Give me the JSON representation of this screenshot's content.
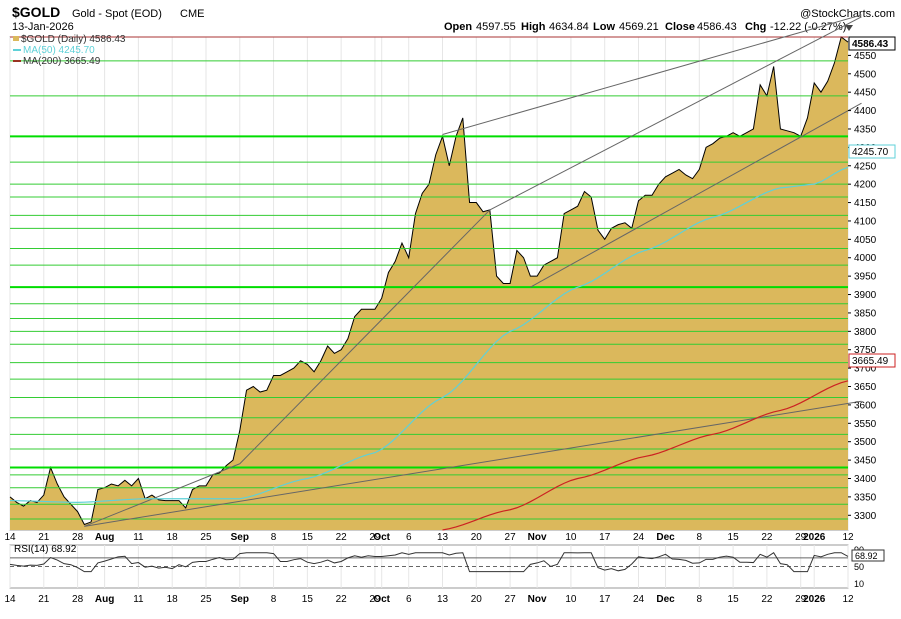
{
  "header": {
    "symbol": "$GOLD",
    "name": "Gold - Spot (EOD)",
    "exchange": "CME",
    "date": "13-Jan-2026",
    "watermark": "@StockCharts.com",
    "open_label": "Open",
    "open": "4597.55",
    "high_label": "High",
    "high": "4634.84",
    "low_label": "Low",
    "low": "4569.21",
    "close_label": "Close",
    "close": "4586.43",
    "chg_label": "Chg",
    "chg": "-12.22 (-0.27%)",
    "dropdown_icon": "triangle-down-icon"
  },
  "legend": {
    "price": "$GOLD (Daily) 4586.43",
    "ma50": "MA(50) 4245.70",
    "ma200": "MA(200) 3665.49"
  },
  "colors": {
    "price_fill": "#dbb85c",
    "price_line": "#000000",
    "ma50": "#5fd1d8",
    "ma200": "#cc2222",
    "hline": "#33cc33",
    "hline_bold": "#00dd00",
    "trend": "#666666",
    "resistance": "#aa3333",
    "grid": "#e6e6e6",
    "rsi_fill": "#555555"
  },
  "chart_data": {
    "type": "area",
    "title": "$GOLD Gold - Spot (EOD) CME",
    "ylim": [
      3260,
      4600
    ],
    "yticks": [
      3300,
      3350,
      3400,
      3450,
      3500,
      3550,
      3600,
      3650,
      3700,
      3750,
      3800,
      3850,
      3900,
      3950,
      4000,
      4050,
      4100,
      4150,
      4200,
      4250,
      4300,
      4350,
      4400,
      4450,
      4500,
      4550
    ],
    "x_labels": [
      {
        "i": 0,
        "label": "14"
      },
      {
        "i": 5,
        "label": "21"
      },
      {
        "i": 10,
        "label": "28"
      },
      {
        "i": 14,
        "label": "Aug"
      },
      {
        "i": 19,
        "label": "11"
      },
      {
        "i": 24,
        "label": "18"
      },
      {
        "i": 29,
        "label": "25"
      },
      {
        "i": 34,
        "label": "Sep"
      },
      {
        "i": 39,
        "label": "8"
      },
      {
        "i": 44,
        "label": "15"
      },
      {
        "i": 49,
        "label": "22"
      },
      {
        "i": 54,
        "label": "29"
      },
      {
        "i": 55,
        "label": "Oct"
      },
      {
        "i": 59,
        "label": "6"
      },
      {
        "i": 64,
        "label": "13"
      },
      {
        "i": 69,
        "label": "20"
      },
      {
        "i": 74,
        "label": "27"
      },
      {
        "i": 78,
        "label": "Nov"
      },
      {
        "i": 83,
        "label": "10"
      },
      {
        "i": 88,
        "label": "17"
      },
      {
        "i": 93,
        "label": "24"
      },
      {
        "i": 97,
        "label": "Dec"
      },
      {
        "i": 102,
        "label": "8"
      },
      {
        "i": 107,
        "label": "15"
      },
      {
        "i": 112,
        "label": "22"
      },
      {
        "i": 117,
        "label": "29"
      },
      {
        "i": 119,
        "label": "2026"
      },
      {
        "i": 124,
        "label": "12"
      }
    ],
    "series": [
      {
        "name": "$GOLD (Daily)",
        "values": [
          3350,
          3335,
          3325,
          3340,
          3335,
          3355,
          3430,
          3385,
          3350,
          3330,
          3310,
          3275,
          3282,
          3370,
          3375,
          3385,
          3380,
          3395,
          3380,
          3400,
          3345,
          3355,
          3342,
          3340,
          3340,
          3340,
          3320,
          3370,
          3380,
          3380,
          3410,
          3415,
          3435,
          3450,
          3530,
          3640,
          3650,
          3635,
          3640,
          3680,
          3680,
          3690,
          3700,
          3720,
          3710,
          3690,
          3720,
          3760,
          3740,
          3750,
          3780,
          3840,
          3860,
          3860,
          3860,
          3890,
          3960,
          3990,
          4040,
          4000,
          4120,
          4175,
          4200,
          4280,
          4330,
          4250,
          4330,
          4380,
          4150,
          4150,
          4125,
          4130,
          3950,
          3930,
          3930,
          4020,
          4000,
          3950,
          3950,
          3980,
          3990,
          4000,
          4120,
          4130,
          4140,
          4180,
          4165,
          4075,
          4050,
          4080,
          4090,
          4095,
          4080,
          4155,
          4170,
          4170,
          4200,
          4220,
          4230,
          4240,
          4225,
          4215,
          4240,
          4300,
          4310,
          4325,
          4330,
          4340,
          4330,
          4340,
          4350,
          4470,
          4440,
          4520,
          4350,
          4345,
          4340,
          4330,
          4380,
          4475,
          4450,
          4480,
          4530,
          4600,
          4586
        ]
      },
      {
        "name": "MA(50)",
        "values_estimate": true
      },
      {
        "name": "MA(200)",
        "values_estimate": true
      }
    ],
    "ma50_anchors": [
      [
        0,
        3340
      ],
      [
        10,
        3335
      ],
      [
        20,
        3345
      ],
      [
        34,
        3345
      ],
      [
        44,
        3400
      ],
      [
        54,
        3470
      ],
      [
        64,
        3620
      ],
      [
        74,
        3800
      ],
      [
        84,
        3920
      ],
      [
        94,
        4020
      ],
      [
        104,
        4110
      ],
      [
        114,
        4190
      ],
      [
        119,
        4200
      ],
      [
        124,
        4245.7
      ]
    ],
    "ma200_anchors": [
      [
        64,
        3260
      ],
      [
        74,
        3315
      ],
      [
        84,
        3400
      ],
      [
        94,
        3460
      ],
      [
        104,
        3520
      ],
      [
        114,
        3585
      ],
      [
        124,
        3665.49
      ]
    ],
    "hlines": [
      3290,
      3330,
      3375,
      3410,
      3430,
      3480,
      3520,
      3565,
      3620,
      3670,
      3715,
      3765,
      3800,
      3835,
      3875,
      3920,
      3980,
      4025,
      4080,
      4115,
      4165,
      4200,
      4260,
      4330,
      4440,
      4535,
      4640
    ],
    "hlines_bold": [
      3430,
      3920,
      4330
    ],
    "trendlines": [
      {
        "from": [
          11,
          3270
        ],
        "to": [
          126,
          3610
        ]
      },
      {
        "from": [
          11,
          3270
        ],
        "to": [
          34,
          3440
        ]
      },
      {
        "from": [
          34,
          3440
        ],
        "to": [
          71,
          4130
        ]
      },
      {
        "from": [
          71,
          4130
        ],
        "to": [
          126,
          4655
        ]
      },
      {
        "from": [
          64,
          4335
        ],
        "to": [
          126,
          4660
        ]
      },
      {
        "from": [
          77,
          3920
        ],
        "to": [
          126,
          4420
        ]
      }
    ],
    "resistance_line": 4600,
    "last_price_label": "4586.43",
    "ma50_label": "4245.70",
    "ma200_label": "3665.49",
    "rsi": {
      "label": "RSI(14) 68.92",
      "value_label": "68.92",
      "yticks": [
        90,
        70,
        50,
        10
      ],
      "ylim": [
        0,
        100
      ]
    }
  }
}
